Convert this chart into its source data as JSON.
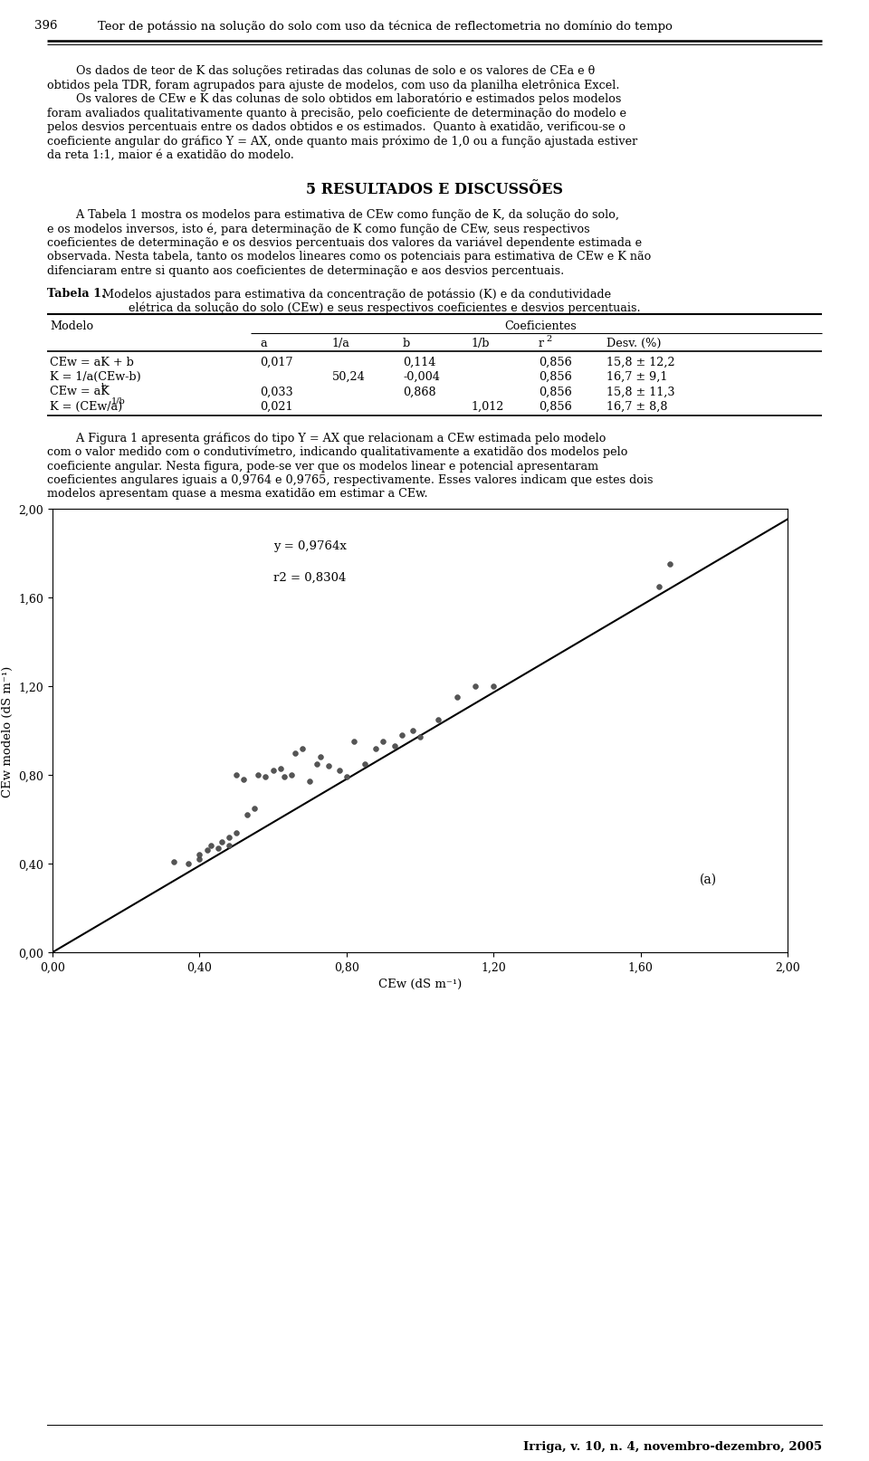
{
  "page_number": "396",
  "header_title": "Teor de potássio na solução do solo com uso da técnica de reflectometria no domínio do tempo",
  "footer_text": "Irriga, v. 10, n. 4, novembro-dezembro, 2005",
  "section_title": "5 RESULTADOS E DISCUSSÕES",
  "fig_annotation_line1": "y = 0,9764x",
  "fig_annotation_line2": "r2 = 0,8304",
  "fig_label": "(a)",
  "fig_xlabel": "CEw (dS m⁻¹)",
  "fig_ylabel": "CEw modelo (dS m⁻¹)",
  "bg_color": "#ffffff",
  "scatter_color": "#555555",
  "scatter_size": 18
}
